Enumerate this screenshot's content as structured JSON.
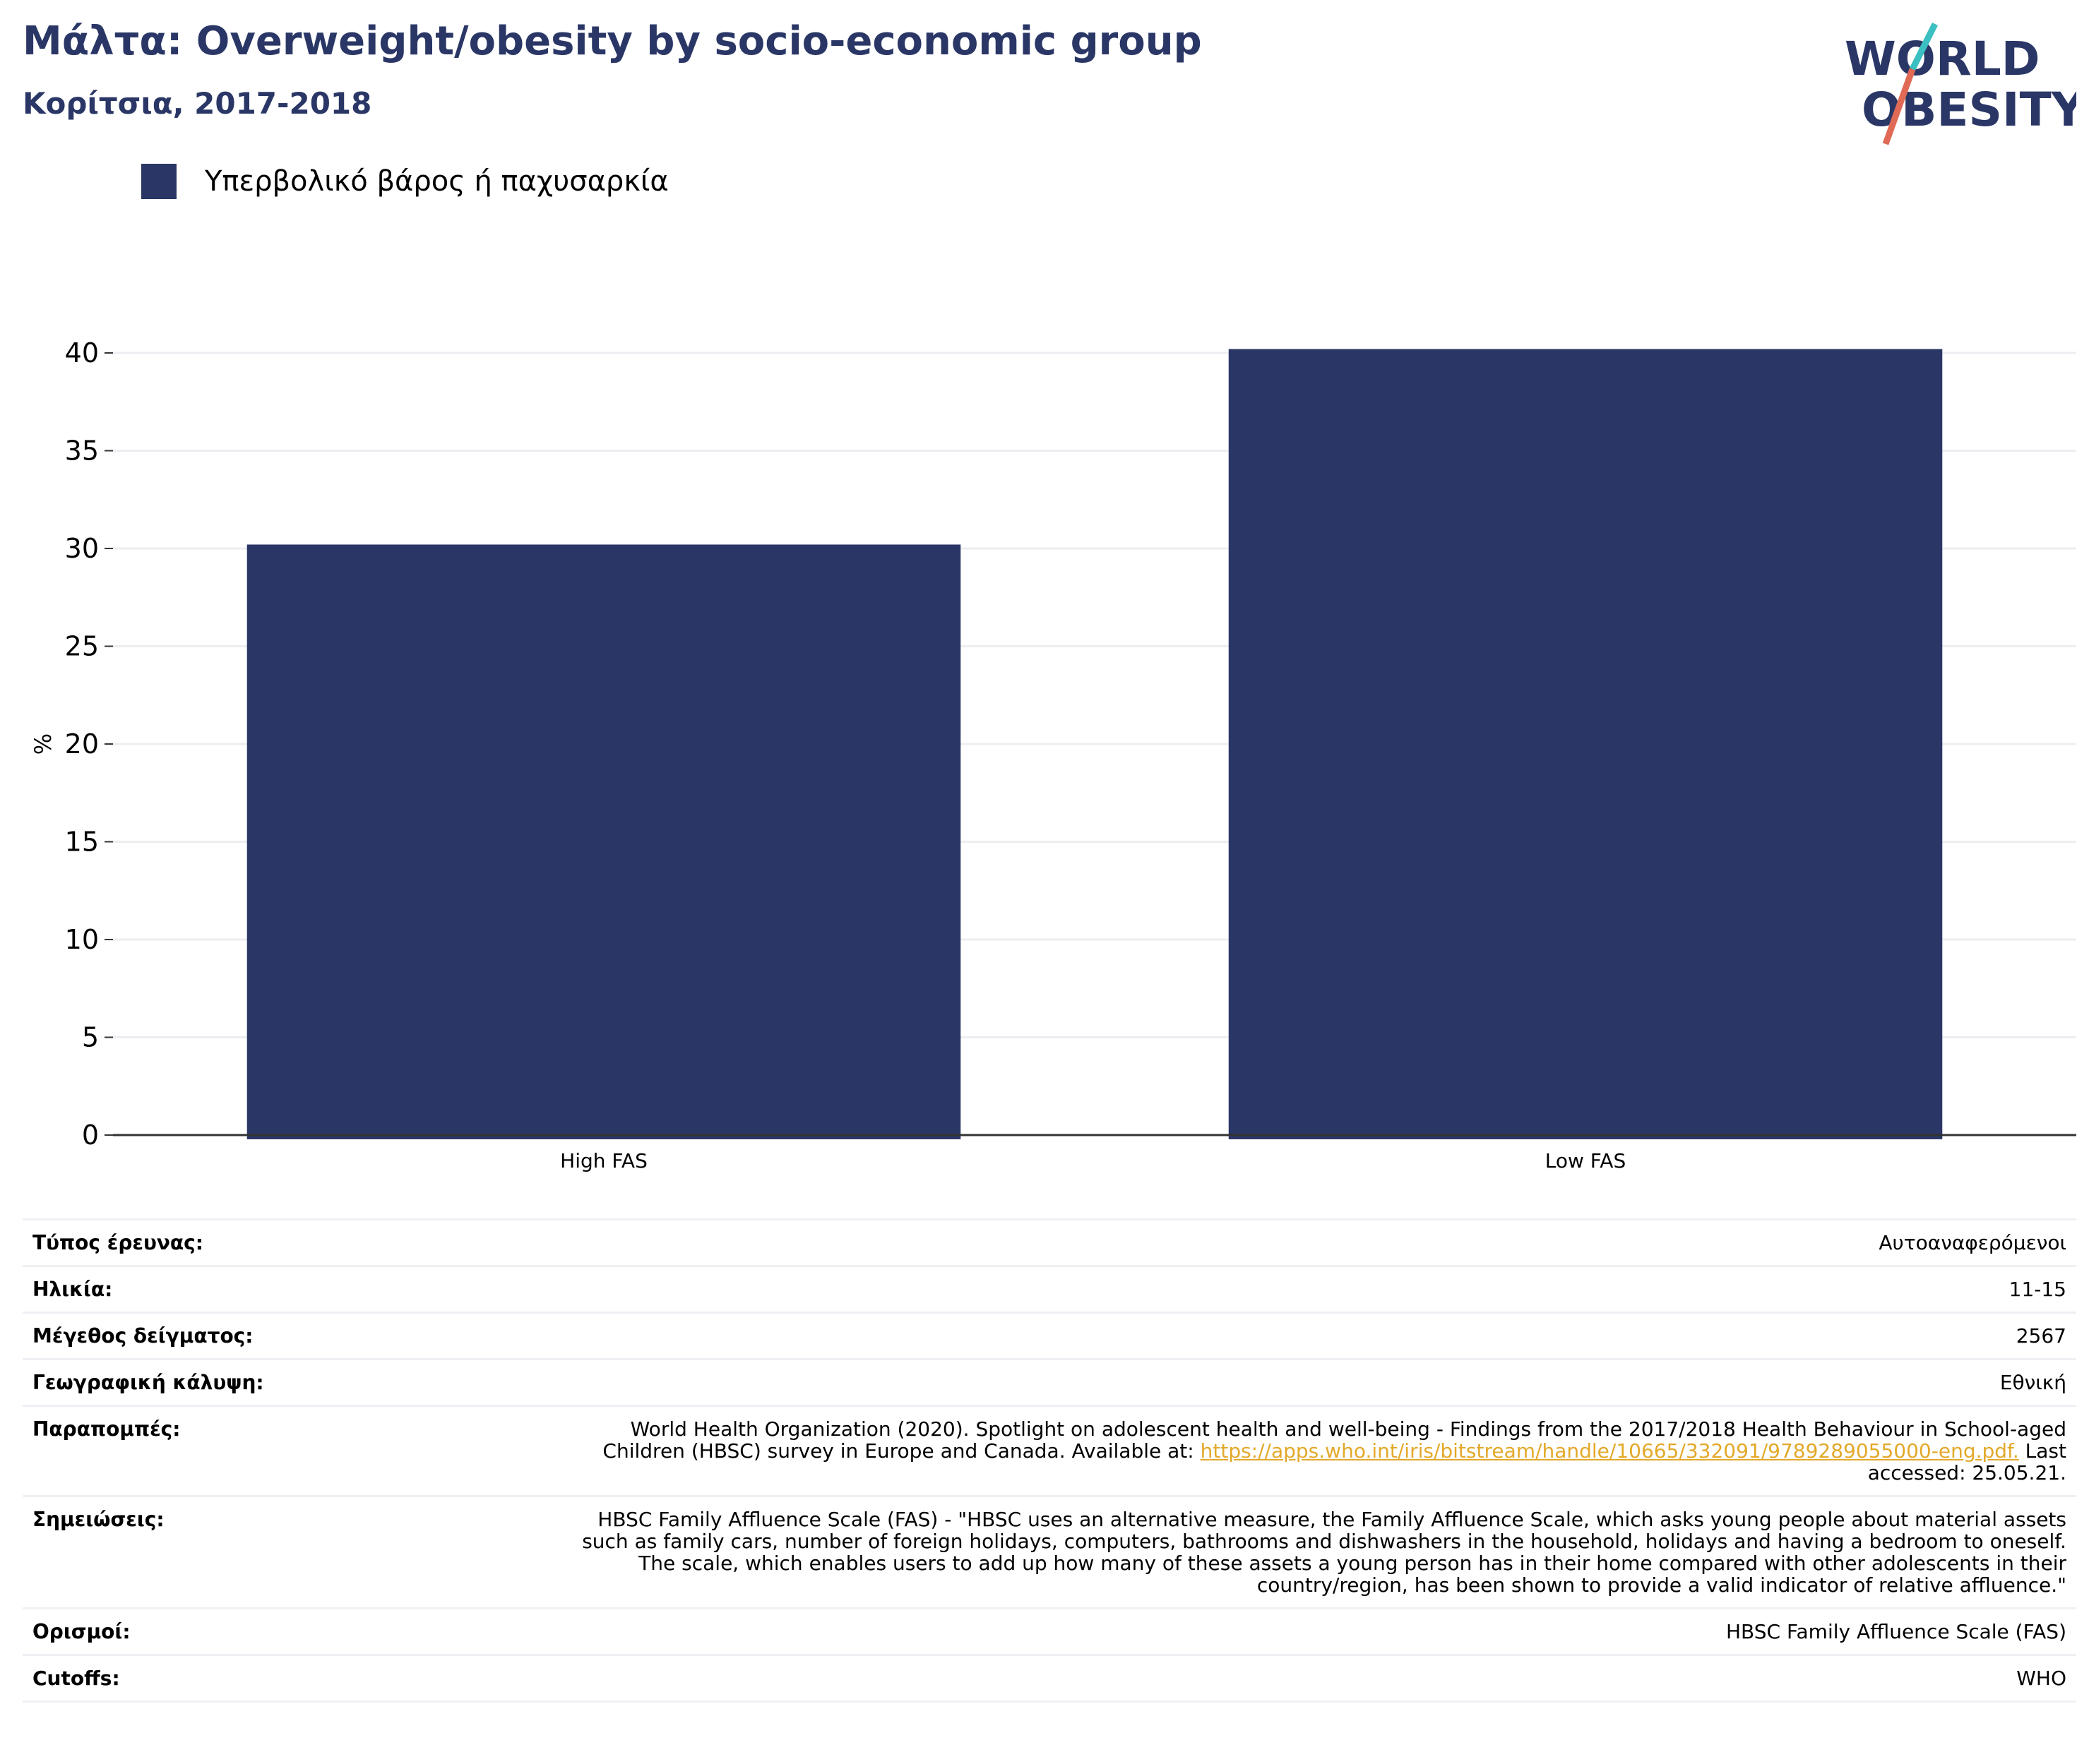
{
  "header": {
    "title": "Μάλτα: Overweight/obesity by socio-economic group",
    "subtitle": "Κορίτσια, 2017-2018"
  },
  "logo": {
    "line1": "WORLD",
    "line2": "OBESITY",
    "colors": {
      "text": "#2a3766",
      "slash_top": "#3bbfc1",
      "slash_bottom": "#e06a56"
    }
  },
  "legend": {
    "label": "Υπερβολικό βάρος ή παχυσαρκία",
    "color": "#2a3766"
  },
  "chart_data": {
    "type": "bar",
    "categories": [
      "High FAS",
      "Low FAS"
    ],
    "series": [
      {
        "name": "Υπερβολικό βάρος ή παχυσαρκία",
        "values": [
          30.2,
          40.2
        ],
        "color": "#2a3766"
      }
    ],
    "xlabel": "",
    "ylabel": "%",
    "ylim": [
      0,
      40
    ],
    "yticks": [
      0,
      5,
      10,
      15,
      20,
      25,
      30,
      35,
      40
    ],
    "grid": true,
    "legend_position": "top-left"
  },
  "info": {
    "rows": [
      {
        "label": "Τύπος έρευνας:",
        "value": "Αυτοαναφερόμενοι"
      },
      {
        "label": "Ηλικία:",
        "value": "11-15"
      },
      {
        "label": "Μέγεθος δείγματος:",
        "value": "2567"
      },
      {
        "label": "Γεωγραφική κάλυψη:",
        "value": "Εθνική"
      },
      {
        "label": "Παραπομπές:",
        "value": "World Health Organization (2020). Spotlight on adolescent health and well-being - Findings from the 2017/2018 Health Behaviour in School-aged Children (HBSC) survey in Europe and Canada. Available at: ",
        "link": "https://apps.who.int/iris/bitstream/handle/10665/332091/9789289055000-eng.pdf.",
        "value_after": " Last accessed: 25.05.21."
      },
      {
        "label": "Σημειώσεις:",
        "value": "HBSC Family Affluence Scale (FAS) - \"HBSC uses an alternative measure, the Family Affluence Scale, which asks young people about material assets such as family cars, number of foreign holidays, computers, bathrooms and dishwashers in the household, holidays and having a bedroom to oneself. The scale, which enables users to add up how many of these assets a young person has in their home compared with other adolescents in their country/region, has been shown to provide a valid indicator of relative affluence.\""
      },
      {
        "label": "Ορισμοί:",
        "value": "HBSC Family Affluence Scale (FAS)"
      },
      {
        "label": "Cutoffs:",
        "value": "WHO"
      }
    ]
  }
}
